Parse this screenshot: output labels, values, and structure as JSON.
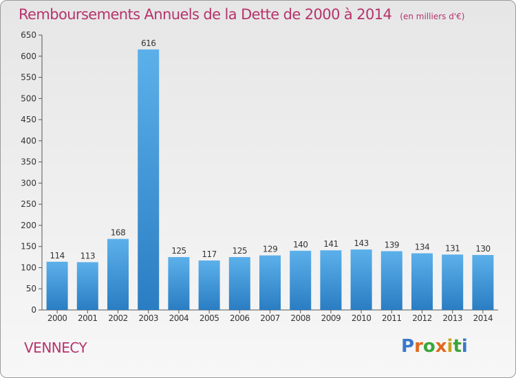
{
  "title": "Remboursements Annuels de la Dette de 2000 à 2014",
  "unit": "(en milliers d'€)",
  "town": "VENNECY",
  "logo": "Proxiti",
  "colors": {
    "accent": "#b5336b",
    "bar_light": "#5aaee8",
    "bar_dark": "#2a7fc4"
  },
  "chart_data": {
    "type": "bar",
    "title": "Remboursements Annuels de la Dette de 2000 à 2014",
    "xlabel": "",
    "ylabel": "",
    "ylim": [
      0,
      650
    ],
    "yticks": [
      0,
      50,
      100,
      150,
      200,
      250,
      300,
      350,
      400,
      450,
      500,
      550,
      600,
      650
    ],
    "grid": false,
    "categories": [
      "2000",
      "2001",
      "2002",
      "2003",
      "2004",
      "2005",
      "2006",
      "2007",
      "2008",
      "2009",
      "2010",
      "2011",
      "2012",
      "2013",
      "2014"
    ],
    "values": [
      114,
      113,
      168,
      616,
      125,
      117,
      125,
      129,
      140,
      141,
      143,
      139,
      134,
      131,
      130
    ]
  }
}
